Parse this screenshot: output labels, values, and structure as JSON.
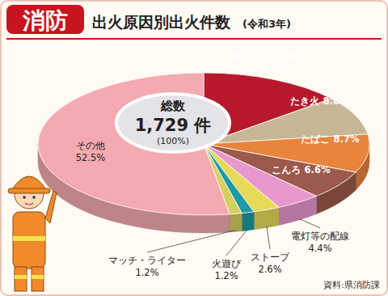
{
  "chart_data": {
    "type": "pie",
    "title": "消防",
    "subtitle": "出火原因別出火件数",
    "period": "(令和3年)",
    "center_title": "総数",
    "center_total": "1,729 件",
    "center_percent": "(100%)",
    "source": "資料:県消防課",
    "categories": [
      "放火・放火の疑い",
      "たき火",
      "たばこ",
      "こんろ",
      "電灯等の配線",
      "ストーブ",
      "火遊び",
      "マッチ・ライター",
      "その他"
    ],
    "values": [
      14.0,
      8.8,
      8.7,
      6.6,
      4.4,
      2.6,
      1.2,
      1.2,
      52.5
    ],
    "value_labels": [
      "14.0%",
      "8.8%",
      "8.7%",
      "6.6%",
      "4.4%",
      "2.6%",
      "1.2%",
      "1.2%",
      "52.5%"
    ],
    "colors": [
      "#b8182c",
      "#c8b796",
      "#e8843c",
      "#9c5a4c",
      "#e898cc",
      "#e6da58",
      "#1e9aa2",
      "#d6cf62",
      "#f4aab0"
    ],
    "data_labels": true
  }
}
